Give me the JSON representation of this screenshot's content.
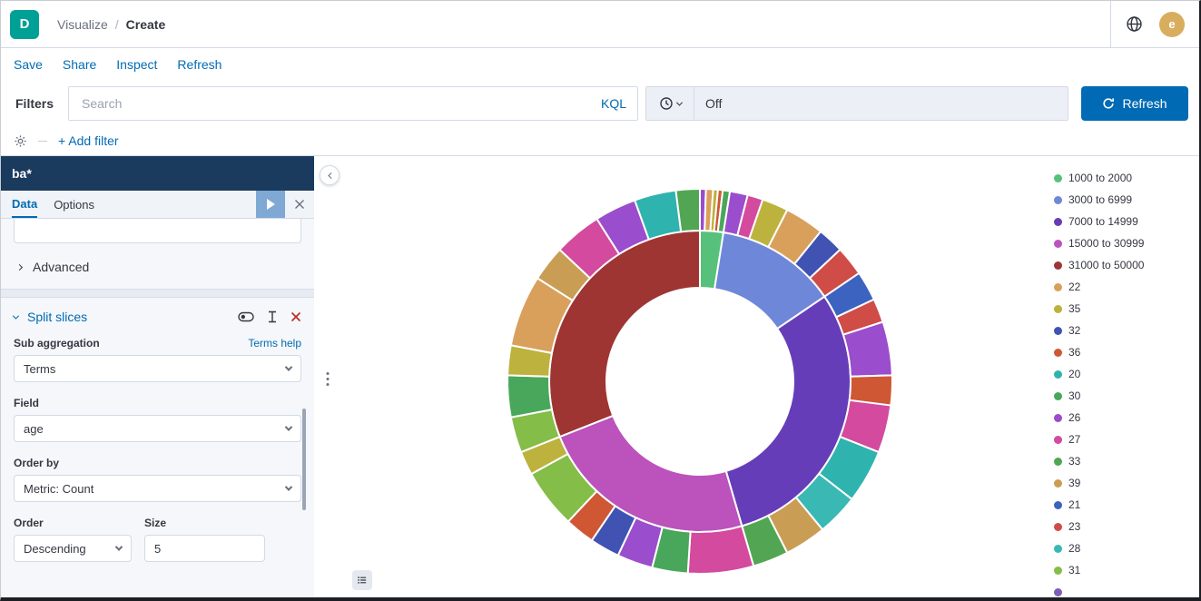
{
  "header": {
    "logo_letter": "D",
    "breadcrumbs": [
      "Visualize",
      "Create"
    ],
    "breadcrumb_separator": "/",
    "avatar_letter": "e"
  },
  "action_bar": {
    "links": [
      "Save",
      "Share",
      "Inspect",
      "Refresh"
    ]
  },
  "query_bar": {
    "filters_label": "Filters",
    "search_placeholder": "Search",
    "kql_label": "KQL",
    "time_value": "Off",
    "refresh_label": "Refresh"
  },
  "filter_bar": {
    "add_filter_label": "+ Add filter"
  },
  "sidebar": {
    "index_pattern": "ba*",
    "tabs": [
      {
        "label": "Data"
      },
      {
        "label": "Options"
      }
    ],
    "advanced_label": "Advanced",
    "split_slices": {
      "title": "Split slices",
      "sub_aggregation_label": "Sub aggregation",
      "terms_help_link": "Terms help",
      "sub_aggregation_value": "Terms",
      "field_label": "Field",
      "field_value": "age",
      "order_by_label": "Order by",
      "order_by_value": "Metric: Count",
      "order_label": "Order",
      "order_value": "Descending",
      "size_label": "Size",
      "size_value": "5"
    }
  },
  "chart_data": {
    "type": "pie",
    "style": "donut_sunburst",
    "legend_position": "right",
    "outer_field": "age",
    "colors": {
      "1000 to 2000": "#57c17b",
      "3000 to 6999": "#6f87d8",
      "7000 to 14999": "#663db8",
      "15000 to 30999": "#bc52bc",
      "31000 to 50000": "#9e3533",
      "22": "#d9a05c",
      "35": "#bdb23d",
      "32": "#4053b3",
      "36": "#cf5734",
      "20": "#2fb3ae",
      "30": "#49a75c",
      "26": "#9a4dcc",
      "27": "#d34a9e",
      "33": "#52a653",
      "39": "#c99e54",
      "21": "#3c63c0",
      "23": "#cf4c47",
      "28": "#3ab8b4",
      "31": "#84bd48"
    },
    "legend": [
      {
        "label": "1000 to 2000",
        "color": "#57c17b"
      },
      {
        "label": "3000 to 6999",
        "color": "#6f87d8"
      },
      {
        "label": "7000 to 14999",
        "color": "#663db8"
      },
      {
        "label": "15000 to 30999",
        "color": "#bc52bc"
      },
      {
        "label": "31000 to 50000",
        "color": "#9e3533"
      },
      {
        "label": "22",
        "color": "#d9a05c"
      },
      {
        "label": "35",
        "color": "#bdb23d"
      },
      {
        "label": "32",
        "color": "#4053b3"
      },
      {
        "label": "36",
        "color": "#cf5734"
      },
      {
        "label": "20",
        "color": "#2fb3ae"
      },
      {
        "label": "30",
        "color": "#49a75c"
      },
      {
        "label": "26",
        "color": "#9a4dcc"
      },
      {
        "label": "27",
        "color": "#d34a9e"
      },
      {
        "label": "33",
        "color": "#52a653"
      },
      {
        "label": "39",
        "color": "#c99e54"
      },
      {
        "label": "21",
        "color": "#3c63c0"
      },
      {
        "label": "23",
        "color": "#cf4c47"
      },
      {
        "label": "28",
        "color": "#3ab8b4"
      },
      {
        "label": "31",
        "color": "#84bd48"
      },
      {
        "label": "",
        "color": "#7e5fb5"
      }
    ],
    "slices": [
      {
        "label": "1000 to 2000",
        "value": 2.5,
        "children": [
          {
            "label": "26",
            "value": 0.5
          },
          {
            "label": "22",
            "value": 0.6
          },
          {
            "label": "35",
            "value": 0.4
          },
          {
            "label": "36",
            "value": 0.4
          },
          {
            "label": "30",
            "value": 0.6
          }
        ]
      },
      {
        "label": "3000 to 6999",
        "value": 13,
        "children": [
          {
            "label": "26",
            "value": 1.5
          },
          {
            "label": "27",
            "value": 1.3
          },
          {
            "label": "35",
            "value": 2.2
          },
          {
            "label": "22",
            "value": 3.3
          },
          {
            "label": "32",
            "value": 2.2
          },
          {
            "label": "23",
            "value": 2.5
          }
        ]
      },
      {
        "label": "7000 to 14999",
        "value": 30,
        "children": [
          {
            "label": "21",
            "value": 2.5
          },
          {
            "label": "23",
            "value": 2.0
          },
          {
            "label": "26",
            "value": 4.5
          },
          {
            "label": "36",
            "value": 2.5
          },
          {
            "label": "27",
            "value": 4.0
          },
          {
            "label": "20",
            "value": 4.5
          },
          {
            "label": "28",
            "value": 3.5
          },
          {
            "label": "39",
            "value": 3.5
          },
          {
            "label": "33",
            "value": 3.0
          }
        ]
      },
      {
        "label": "15000 to 30999",
        "value": 23.5,
        "children": [
          {
            "label": "27",
            "value": 5.5
          },
          {
            "label": "30",
            "value": 3.0
          },
          {
            "label": "26",
            "value": 3.0
          },
          {
            "label": "32",
            "value": 2.5
          },
          {
            "label": "36",
            "value": 2.5
          },
          {
            "label": "31",
            "value": 5.0
          },
          {
            "label": "35",
            "value": 2.0
          }
        ]
      },
      {
        "label": "31000 to 50000",
        "value": 31,
        "children": [
          {
            "label": "31",
            "value": 3.0
          },
          {
            "label": "30",
            "value": 3.5
          },
          {
            "label": "35",
            "value": 2.5
          },
          {
            "label": "22",
            "value": 6.0
          },
          {
            "label": "39",
            "value": 3.0
          },
          {
            "label": "27",
            "value": 4.0
          },
          {
            "label": "26",
            "value": 3.5
          },
          {
            "label": "20",
            "value": 3.5
          },
          {
            "label": "33",
            "value": 2.0
          }
        ]
      }
    ]
  }
}
